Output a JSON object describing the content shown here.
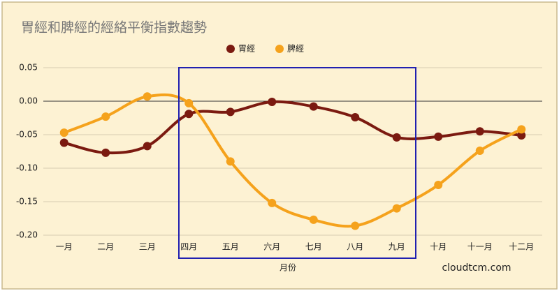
{
  "chart_data": {
    "type": "line",
    "title": "胃經和脾經的經絡平衡指數趨勢",
    "x_label": "月份",
    "watermark": "cloudtcm.com",
    "categories": [
      "一月",
      "二月",
      "三月",
      "四月",
      "五月",
      "六月",
      "七月",
      "八月",
      "九月",
      "十月",
      "十一月",
      "十二月"
    ],
    "series": [
      {
        "name": "胃經",
        "color": "#7b1a10",
        "values": [
          -0.062,
          -0.077,
          -0.067,
          -0.019,
          -0.016,
          -0.001,
          -0.008,
          -0.024,
          -0.054,
          -0.053,
          -0.045,
          -0.051
        ]
      },
      {
        "name": "脾經",
        "color": "#f5a21c",
        "values": [
          -0.047,
          -0.023,
          0.007,
          -0.003,
          -0.09,
          -0.152,
          -0.177,
          -0.186,
          -0.16,
          -0.125,
          -0.074,
          -0.042
        ]
      }
    ],
    "ylim": [
      -0.2,
      0.05
    ],
    "yticks": [
      {
        "value": -0.2,
        "label": "-0.20"
      },
      -0.15,
      {
        "value": -0.1,
        "label": "-0.10"
      },
      -0.05,
      {
        "value": 0,
        "label": "0.00"
      },
      0.05
    ],
    "grid": true,
    "legend": "top",
    "smooth": true
  }
}
